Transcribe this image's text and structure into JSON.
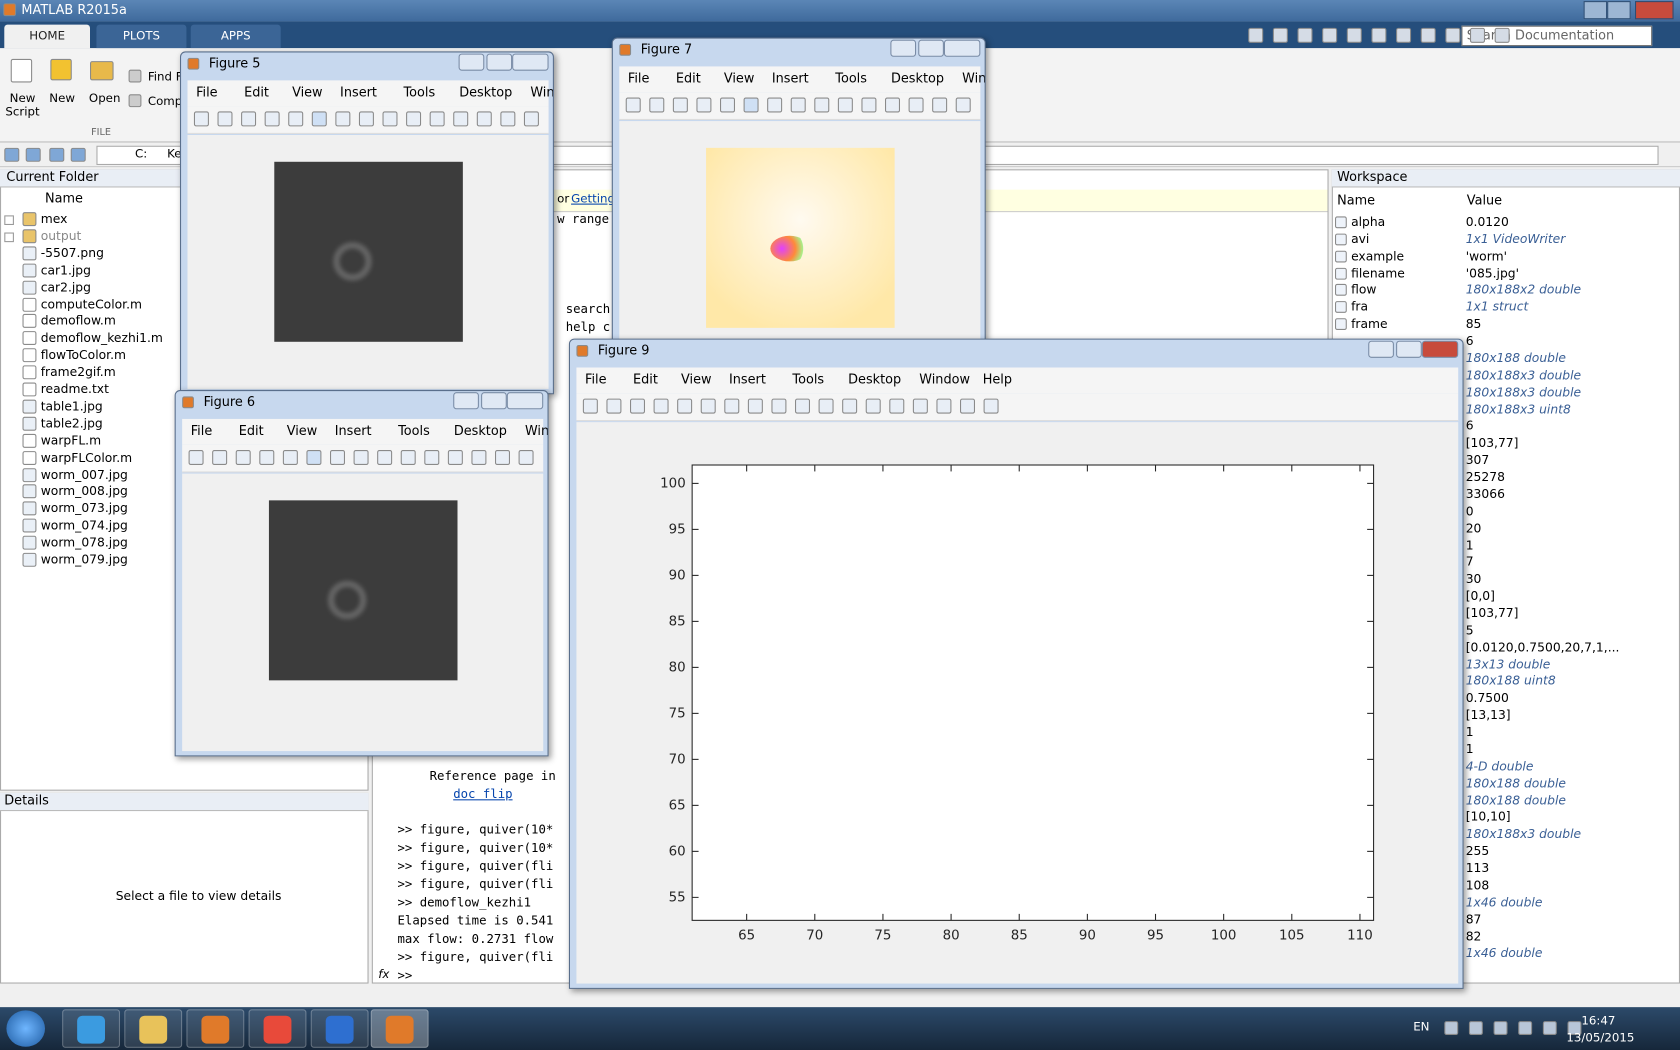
{
  "window": {
    "title": "MATLAB R2015a"
  },
  "ribbon": {
    "tabs": [
      "HOME",
      "PLOTS",
      "APPS"
    ],
    "new_script": "New Script",
    "new": "New",
    "open": "Open",
    "find": "Find Fi",
    "compare": "Compa",
    "section": "FILE",
    "search": "Search Documentation"
  },
  "address": {
    "parts": [
      "C:",
      "Ke"
    ]
  },
  "current_folder": {
    "title": "Current Folder",
    "column": "Name",
    "items": [
      "mex",
      "output",
      "-5507.png",
      "car1.jpg",
      "car2.jpg",
      "computeColor.m",
      "demoflow.m",
      "demoflow_kezhi1.m",
      "flowToColor.m",
      "frame2gif.m",
      "readme.txt",
      "table1.jpg",
      "table2.jpg",
      "warpFL.m",
      "warpFLColor.m",
      "worm_007.jpg",
      "worm_008.jpg",
      "worm_073.jpg",
      "worm_074.jpg",
      "worm_078.jpg",
      "worm_079.jpg"
    ]
  },
  "details": {
    "title": "Details",
    "message": "Select a file to view details"
  },
  "command_window": {
    "banner_prefix": "or",
    "banner_link": "Getting",
    "fragments": [
      "w range",
      "search",
      "help c"
    ],
    "lines": [
      "Reference page in",
      "doc flip",
      ">> figure, quiver(10*",
      ">> figure, quiver(10*",
      ">> figure, quiver(fli",
      ">> figure, quiver(fli",
      ">> demoflow_kezhi1",
      "Elapsed time is 0.541",
      "max flow: 0.2731 flow",
      ">> figure, quiver(fli"
    ],
    "prompt": ">>",
    "fx": "fx"
  },
  "workspace": {
    "title": "Workspace",
    "columns": [
      "Name",
      "Value"
    ],
    "rows": [
      {
        "name": "alpha",
        "value": "0.0120"
      },
      {
        "name": "avi",
        "value": "1x1 VideoWriter"
      },
      {
        "name": "example",
        "value": "'worm'"
      },
      {
        "name": "filename",
        "value": "'085.jpg'"
      },
      {
        "name": "flow",
        "value": "180x188x2 double"
      },
      {
        "name": "fra",
        "value": "1x1 struct"
      },
      {
        "name": "frame",
        "value": "85"
      },
      {
        "name": null,
        "value": "6"
      },
      {
        "name": null,
        "value": "180x188 double"
      },
      {
        "name": null,
        "value": "180x188x3 double"
      },
      {
        "name": null,
        "value": "180x188x3 double"
      },
      {
        "name": null,
        "value": "180x188x3 uint8"
      },
      {
        "name": null,
        "value": "6"
      },
      {
        "name": null,
        "value": "[103,77]"
      },
      {
        "name": null,
        "value": "307"
      },
      {
        "name": null,
        "value": "25278"
      },
      {
        "name": null,
        "value": "33066"
      },
      {
        "name": null,
        "value": "0"
      },
      {
        "name": null,
        "value": "20"
      },
      {
        "name": null,
        "value": "1"
      },
      {
        "name": null,
        "value": "7"
      },
      {
        "name": null,
        "value": "30"
      },
      {
        "name": null,
        "value": "[0,0]"
      },
      {
        "name": null,
        "value": "[103,77]"
      },
      {
        "name": null,
        "value": "5"
      },
      {
        "name": null,
        "value": "[0.0120,0.7500,20,7,1,..."
      },
      {
        "name": null,
        "value": "13x13 double"
      },
      {
        "name": null,
        "value": "180x188 uint8"
      },
      {
        "name": null,
        "value": "0.7500"
      },
      {
        "name": null,
        "value": "[13,13]"
      },
      {
        "name": null,
        "value": "1"
      },
      {
        "name": null,
        "value": "1"
      },
      {
        "name": null,
        "value": "4-D double"
      },
      {
        "name": null,
        "value": "180x188 double"
      },
      {
        "name": null,
        "value": "180x188 double"
      },
      {
        "name": null,
        "value": "[10,10]"
      },
      {
        "name": null,
        "value": "180x188x3 double"
      },
      {
        "name": null,
        "value": "255"
      },
      {
        "name": null,
        "value": "113"
      },
      {
        "name": null,
        "value": "108"
      },
      {
        "name": null,
        "value": "1x46 double"
      },
      {
        "name": null,
        "value": "87"
      },
      {
        "name": null,
        "value": "82"
      },
      {
        "name": null,
        "value": "1x46 double"
      }
    ]
  },
  "figure_menu": [
    "File",
    "Edit",
    "View",
    "Insert",
    "Tools",
    "Desktop",
    "Window",
    "Help"
  ],
  "figures": [
    {
      "title": "Figure 5"
    },
    {
      "title": "Figure 7"
    },
    {
      "title": "Figure 6"
    },
    {
      "title": "Figure 9"
    }
  ],
  "chart_data": {
    "type": "quiver",
    "xlim": [
      61,
      111
    ],
    "ylim": [
      52.5,
      102
    ],
    "xticks": [
      65,
      70,
      75,
      80,
      85,
      90,
      95,
      100,
      105,
      110
    ],
    "yticks": [
      55,
      60,
      65,
      70,
      75,
      80,
      85,
      90,
      95,
      100
    ],
    "axis_color": "#262626",
    "box": true
  },
  "taskbar": {
    "language": "EN",
    "time": "16:47",
    "date": "13/05/2015"
  }
}
